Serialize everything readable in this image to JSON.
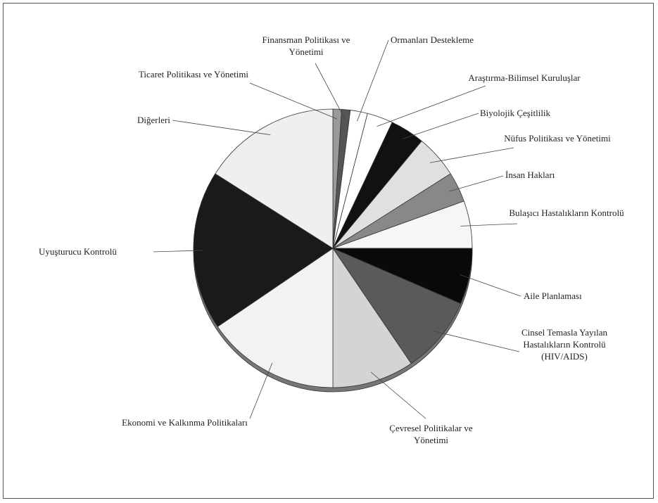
{
  "chart_data": {
    "type": "pie",
    "categories": [
      "Ticaret Politikası ve Yönetimi",
      "Finansman Politikası ve Yönetimi",
      "Ormanları Destekleme",
      "Araştırma-Bilimsel Kuruluşlar",
      "Biyolojik Çeşitlilik",
      "Nüfus Politikası ve Yönetimi",
      "İnsan Hakları",
      "Bulaşıcı Hastalıkların Kontrolü",
      "Aile Planlaması",
      "Cinsel Temasla Yayılan Hastalıkların Kontrolü (HIV/AIDS)",
      "Çevresel Politikalar ve Yönetimi",
      "Ekonomi ve Kalkınma Politikaları",
      "Uyuşturucu Kontrolü",
      "Diğerleri"
    ],
    "values": [
      1,
      1,
      2,
      3,
      4,
      5,
      3.5,
      5.5,
      6.5,
      9,
      9.5,
      15.5,
      18.5,
      16
    ],
    "colors": [
      "#9a9a9a",
      "#555555",
      "#ffffff",
      "#ffffff",
      "#111111",
      "#e0e0e0",
      "#888888",
      "#f6f6f6",
      "#0a0a0a",
      "#5a5a5a",
      "#d4d4d4",
      "#f2f2f2",
      "#1a1a1a",
      "#efefef"
    ]
  }
}
